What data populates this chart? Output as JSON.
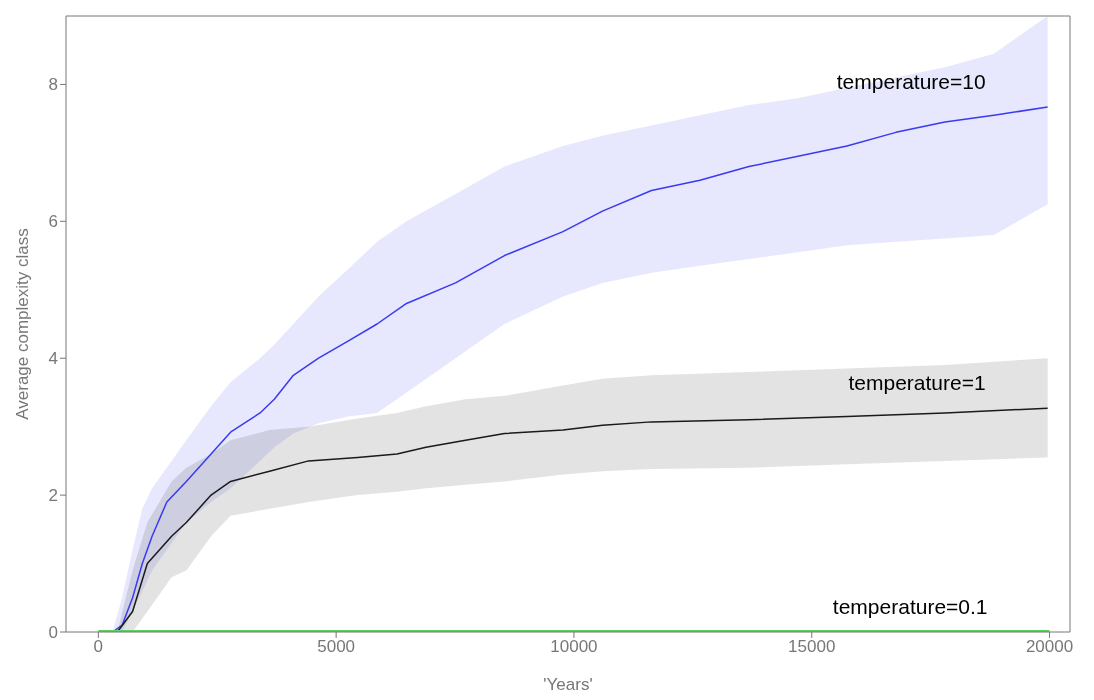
{
  "chart_data": {
    "type": "line",
    "xlabel": "'Years'",
    "ylabel": "Average complexity class",
    "xlim": [
      -680,
      20430
    ],
    "xticks": [
      0,
      5000,
      10000,
      15000,
      20000
    ],
    "ylim": [
      0,
      9
    ],
    "yticks": [
      0,
      2,
      4,
      6,
      8
    ],
    "grid": false,
    "legend": false,
    "marker": "none",
    "line_style": "solid",
    "series": [
      {
        "name": "temperature=10",
        "color": "#3a3af0",
        "x": [
          300,
          500,
          720,
          925,
          1130,
          1440,
          1850,
          2370,
          2780,
          3400,
          3700,
          4100,
          4630,
          5250,
          5860,
          6480,
          7510,
          8540,
          9770,
          10600,
          11630,
          12650,
          13680,
          14710,
          15740,
          16770,
          17800,
          18830,
          19960
        ],
        "values": [
          0,
          0.1,
          0.5,
          1.0,
          1.4,
          1.9,
          2.2,
          2.6,
          2.92,
          3.2,
          3.4,
          3.75,
          4.0,
          4.25,
          4.5,
          4.8,
          5.1,
          5.5,
          5.85,
          6.15,
          6.45,
          6.6,
          6.8,
          6.95,
          7.1,
          7.3,
          7.45,
          7.55,
          7.67
        ],
        "upper": [
          0,
          0.5,
          1.2,
          1.8,
          2.1,
          2.4,
          2.8,
          3.3,
          3.65,
          4.0,
          4.2,
          4.5,
          4.9,
          5.3,
          5.7,
          6.0,
          6.4,
          6.8,
          7.1,
          7.25,
          7.4,
          7.55,
          7.7,
          7.8,
          7.95,
          8.1,
          8.25,
          8.45,
          9.0
        ],
        "lower": [
          0,
          0,
          0.3,
          0.6,
          0.9,
          1.2,
          1.6,
          1.9,
          2.1,
          2.5,
          2.7,
          2.9,
          3.05,
          3.15,
          3.2,
          3.5,
          4.0,
          4.5,
          4.9,
          5.1,
          5.25,
          5.35,
          5.45,
          5.55,
          5.65,
          5.7,
          5.75,
          5.8,
          6.25
        ]
      },
      {
        "name": "temperature=1",
        "color": "#1a1a1a",
        "x": [
          400,
          720,
          1030,
          1540,
          1850,
          2370,
          2780,
          3600,
          4420,
          5450,
          6280,
          6890,
          7720,
          8540,
          9770,
          10600,
          11630,
          13680,
          15740,
          17800,
          19960
        ],
        "values": [
          0,
          0.3,
          1.0,
          1.4,
          1.6,
          2.0,
          2.2,
          2.35,
          2.5,
          2.55,
          2.6,
          2.7,
          2.8,
          2.9,
          2.95,
          3.02,
          3.07,
          3.1,
          3.15,
          3.2,
          3.27
        ],
        "upper": [
          0,
          0.9,
          1.6,
          2.2,
          2.4,
          2.6,
          2.8,
          2.95,
          3.0,
          3.12,
          3.2,
          3.3,
          3.4,
          3.45,
          3.6,
          3.7,
          3.75,
          3.8,
          3.85,
          3.9,
          4.0
        ],
        "lower": [
          0,
          0,
          0.3,
          0.8,
          0.9,
          1.4,
          1.7,
          1.8,
          1.9,
          2.0,
          2.05,
          2.1,
          2.15,
          2.2,
          2.3,
          2.35,
          2.38,
          2.4,
          2.45,
          2.5,
          2.55
        ]
      },
      {
        "name": "temperature=0.1",
        "color": "#5ad45a",
        "x": [
          0,
          20000
        ],
        "values": [
          0,
          0
        ]
      }
    ]
  }
}
